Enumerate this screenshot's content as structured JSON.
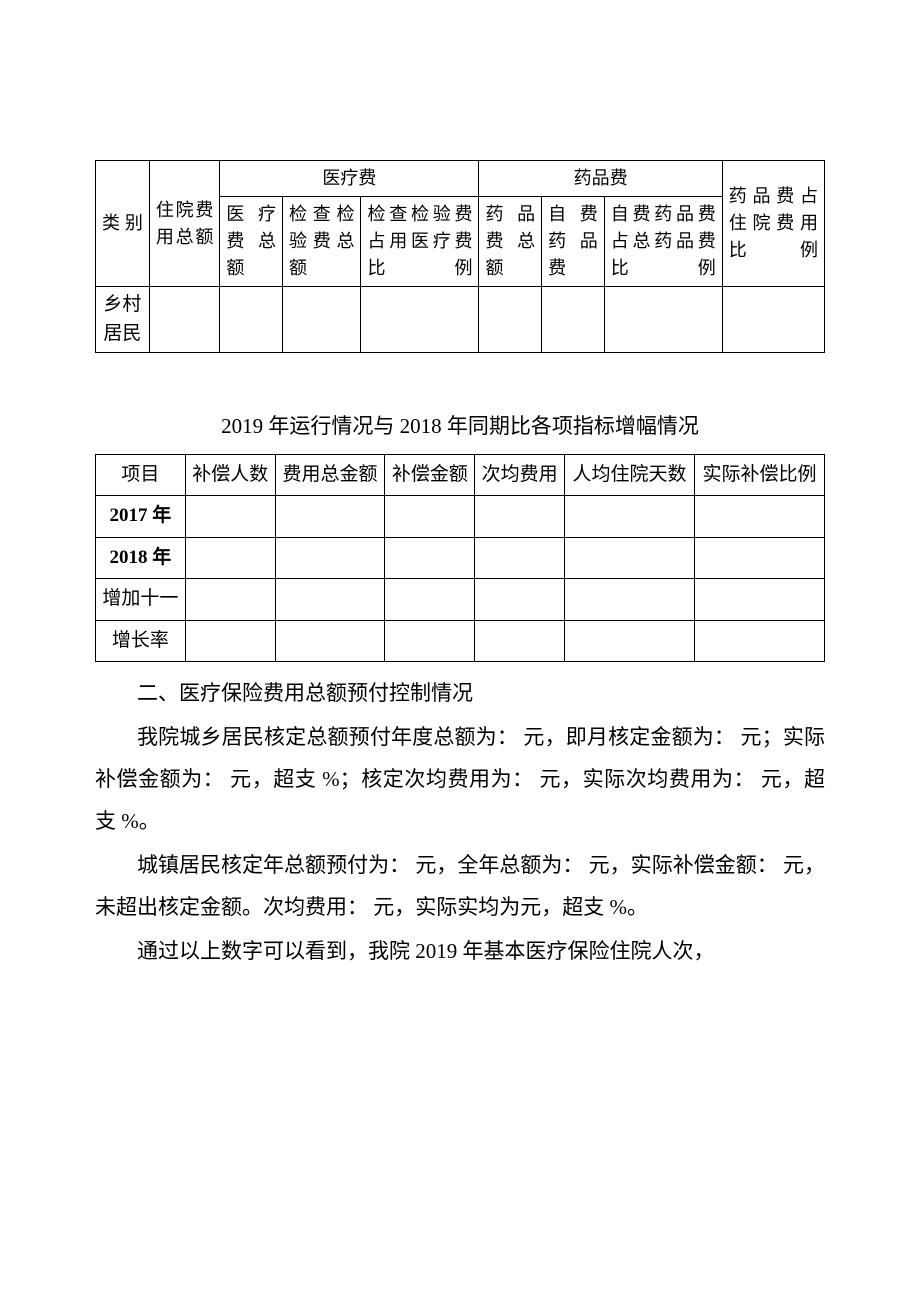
{
  "table1": {
    "headers": {
      "col1": "类别",
      "col2": "住院费用总额",
      "group1": "医疗费",
      "group1_sub1": "医疗费总额",
      "group1_sub2": "检查检验费总额",
      "group1_sub3": "检查检验费占用医疗费比例",
      "group2": "药品费",
      "group2_sub1": "药品费总额",
      "group2_sub2": "自费药品费",
      "group2_sub3": "自费药品费占总药品费比例",
      "col_last": "药品费占住院费用比例"
    },
    "row1_label": "乡村居民"
  },
  "table2": {
    "caption": "2019 年运行情况与 2018 年同期比各项指标增幅情况",
    "headers": {
      "c1": "项目",
      "c2": "补偿人数",
      "c3": "费用总金额",
      "c4": "补偿金额",
      "c5": "次均费用",
      "c6": "人均住院天数",
      "c7": "实际补偿比例"
    },
    "rows": {
      "r1": "2017 年",
      "r2": "2018 年",
      "r3": "增加十一",
      "r4": "增长率"
    }
  },
  "body": {
    "section_title": "二、医疗保险费用总额预付控制情况",
    "p1": "我院城乡居民核定总额预付年度总额为：  元，即月核定金额为：  元；实际补偿金额为：  元，超支  %；核定次均费用为：  元，实际次均费用为：  元，超支  %。",
    "p2": "城镇居民核定年总额预付为：  元，全年总额为：  元，实际补偿金额：  元，未超出核定金额。次均费用：  元，实际实均为元，超支  %。",
    "p3": "通过以上数字可以看到，我院 2019 年基本医疗保险住院人次，"
  }
}
